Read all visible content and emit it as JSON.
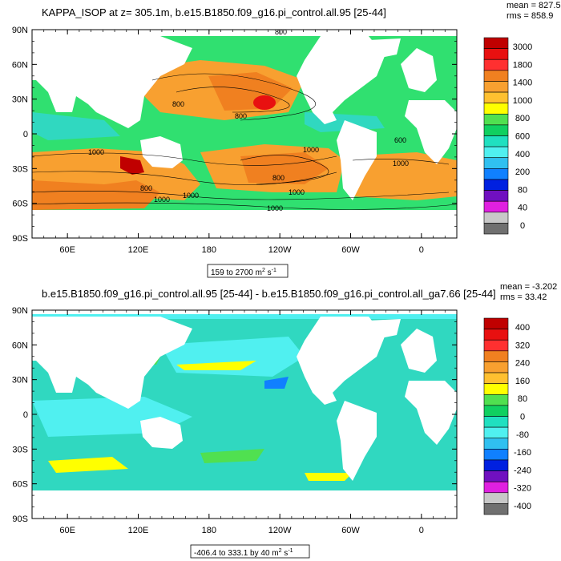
{
  "colors": {
    "ocean_bg": "#30d8b0",
    "land": "#ffffff",
    "frame": "#000000"
  },
  "chart_data": [
    {
      "type": "heatmap",
      "title": "KAPPA_ISOP at z= 305.1m, b.e15.B1850.f09_g16.pi_control.all.95 [25-44]",
      "stats": [
        "mean = 827.5",
        "rms = 858.9"
      ],
      "range_label_prefix": "159 to 2700 m",
      "range_label_sup": "2",
      "range_label_units": " s",
      "range_label_sup2": "-1",
      "x_ticks": [
        "60E",
        "120E",
        "180",
        "120W",
        "60W",
        "0"
      ],
      "x_tick_lon": [
        60,
        120,
        180,
        240,
        300,
        360
      ],
      "x_range": [
        30,
        390
      ],
      "y_ticks": [
        "90N",
        "60N",
        "30N",
        "0",
        "30S",
        "60S",
        "90S"
      ],
      "y_tick_lat": [
        90,
        60,
        30,
        0,
        -30,
        -60,
        -90
      ],
      "contour_labels": [
        "800",
        "800",
        "800",
        "1000",
        "1000",
        "800",
        "600",
        "1000",
        "1000",
        "800",
        "1000",
        "1000",
        "1000"
      ],
      "legend": {
        "labels": [
          "3000",
          "1800",
          "1400",
          "1000",
          "800",
          "600",
          "400",
          "200",
          "80",
          "40",
          "0"
        ],
        "colors": [
          "#c00000",
          "#e81010",
          "#ff3030",
          "#f08020",
          "#f8a030",
          "#ffc030",
          "#ffff00",
          "#50e050",
          "#10d060",
          "#20e0c0",
          "#50f0f0",
          "#30c0f0",
          "#1080ff",
          "#0020e0",
          "#7010c0",
          "#e020e0",
          "#c8c8c8",
          "#707070"
        ]
      }
    },
    {
      "type": "heatmap",
      "title": "b.e15.B1850.f09_g16.pi_control.all.95 [25-44] - b.e15.B1850.f09_g16.pi_control.all_ga7.66 [25-44]",
      "stats": [
        "mean = -3.202",
        "rms = 33.42"
      ],
      "range_label_prefix": "-406.4 to 333.1 by 40 m",
      "range_label_sup": "2",
      "range_label_units": " s",
      "range_label_sup2": "-1",
      "x_ticks": [
        "60E",
        "120E",
        "180",
        "120W",
        "60W",
        "0"
      ],
      "x_tick_lon": [
        60,
        120,
        180,
        240,
        300,
        360
      ],
      "x_range": [
        30,
        390
      ],
      "y_ticks": [
        "90N",
        "60N",
        "30N",
        "0",
        "30S",
        "60S",
        "90S"
      ],
      "y_tick_lat": [
        90,
        60,
        30,
        0,
        -30,
        -60,
        -90
      ],
      "legend": {
        "labels": [
          "400",
          "320",
          "240",
          "160",
          "80",
          "0",
          "-80",
          "-160",
          "-240",
          "-320",
          "-400"
        ],
        "colors": [
          "#c00000",
          "#e81010",
          "#ff3030",
          "#f08020",
          "#f8a030",
          "#ffc030",
          "#ffff00",
          "#50e050",
          "#10d060",
          "#20e0c0",
          "#50f0f0",
          "#30c0f0",
          "#1080ff",
          "#0020e0",
          "#7010c0",
          "#e020e0",
          "#c8c8c8",
          "#707070"
        ]
      }
    }
  ]
}
